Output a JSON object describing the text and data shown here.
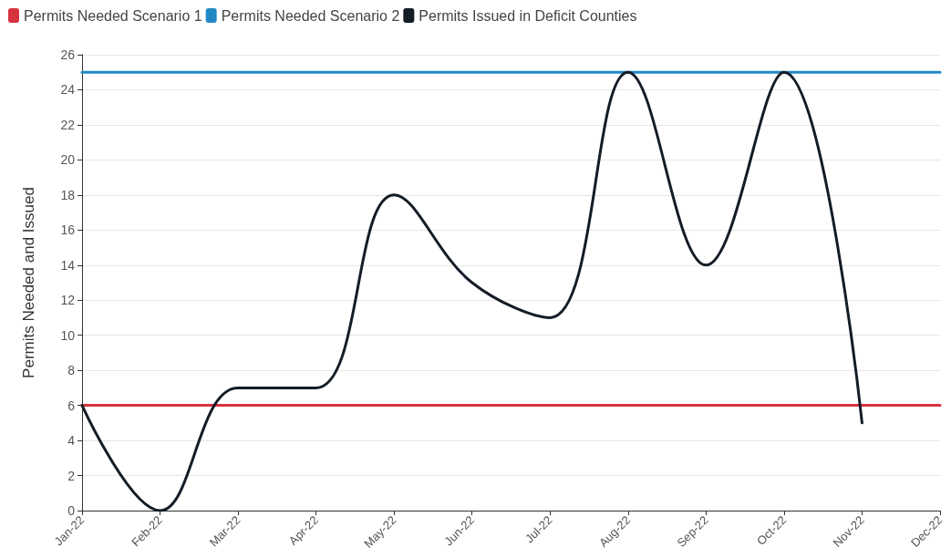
{
  "chart_data": {
    "type": "line",
    "categories": [
      "Jan-22",
      "Feb-22",
      "Mar-22",
      "Apr-22",
      "May-22",
      "Jun-22",
      "Jul-22",
      "Aug-22",
      "Sep-22",
      "Oct-22",
      "Nov-22",
      "Dec-22"
    ],
    "ylabel": "Permits Needed and Issued",
    "series": [
      {
        "name": "Permits Needed Scenario 1",
        "color": "#d7333f",
        "values": [
          6,
          6,
          6,
          6,
          6,
          6,
          6,
          6,
          6,
          6,
          6,
          6
        ]
      },
      {
        "name": "Permits Needed Scenario 2",
        "color": "#2389c4",
        "values": [
          25,
          25,
          25,
          25,
          25,
          25,
          25,
          25,
          25,
          25,
          25,
          25
        ]
      },
      {
        "name": "Permits Issued in Deficit Counties",
        "color": "#141c26",
        "values": [
          6,
          0,
          7,
          7,
          18,
          13,
          11,
          25,
          14,
          25,
          5,
          null
        ]
      }
    ],
    "ylim": [
      0,
      26
    ],
    "yticks": [
      0,
      2,
      4,
      6,
      8,
      10,
      12,
      14,
      16,
      18,
      20,
      22,
      24,
      26
    ],
    "grid": "y",
    "legend": "top left",
    "marker": "none",
    "line_style": "solid"
  }
}
